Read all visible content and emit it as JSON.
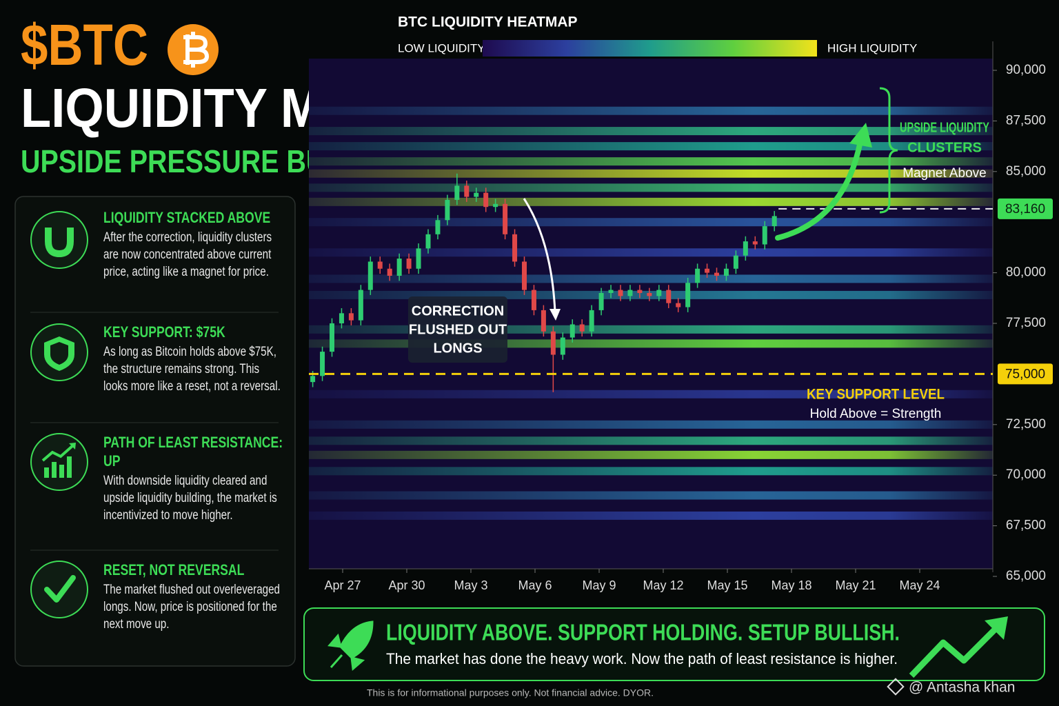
{
  "header": {
    "ticker": "$BTC",
    "title": "LIQUIDITY MAP:",
    "subtitle": "UPSIDE PRESSURE BUILDING"
  },
  "cards": [
    {
      "title": "LIQUIDITY STACKED ABOVE",
      "text": "After the correction, liquidity clusters are now concentrated above current price, acting like a magnet for price."
    },
    {
      "title": "KEY SUPPORT: $75K",
      "text": "As long as Bitcoin holds above $75K, the structure remains strong. This looks more like a reset, not a reversal."
    },
    {
      "title": "PATH OF LEAST RESISTANCE: UP",
      "text": "With downside liquidity cleared and upside liquidity building, the market is incentivized to move higher."
    },
    {
      "title": "RESET, NOT REVERSAL",
      "text": "The market flushed out overleveraged longs. Now, price is positioned for the next move up."
    }
  ],
  "chart_data": {
    "type": "candlestick",
    "title": "BTC LIQUIDITY HEATMAP",
    "colorbar_low": "LOW LIQUIDITY",
    "colorbar_high": "HIGH LIQUIDITY",
    "colorscale": [
      "#1e0b4f",
      "#2c3f9e",
      "#1f9c8c",
      "#5fcf3f",
      "#f2e21b"
    ],
    "up_color": "#2ecc71",
    "down_color": "#e04848",
    "xlim": [
      -2,
      30
    ],
    "xticks": [
      {
        "value": 0,
        "label": "Apr 27"
      },
      {
        "value": 3,
        "label": "Apr 30"
      },
      {
        "value": 6,
        "label": "May 3"
      },
      {
        "value": 9,
        "label": "May 6"
      },
      {
        "value": 12,
        "label": "May 9"
      },
      {
        "value": 15,
        "label": "May 12"
      },
      {
        "value": 18,
        "label": "May 15"
      },
      {
        "value": 21,
        "label": "May 18"
      },
      {
        "value": 24,
        "label": "May 21"
      },
      {
        "value": 27,
        "label": "May 24"
      }
    ],
    "ylim": [
      65000,
      90000
    ],
    "yticks": [
      {
        "value": 65000,
        "label": "65,000"
      },
      {
        "value": 67500,
        "label": "67,500"
      },
      {
        "value": 70000,
        "label": "70,000"
      },
      {
        "value": 72500,
        "label": "72,500"
      },
      {
        "value": 77500,
        "label": "77,500"
      },
      {
        "value": 80000,
        "label": "80,000"
      },
      {
        "value": 85000,
        "label": "85,000"
      },
      {
        "value": 87500,
        "label": "87,500"
      },
      {
        "value": 90000,
        "label": "90,000"
      }
    ],
    "x": [
      -1.4,
      -0.95,
      -0.5,
      -0.05,
      0.4,
      0.85,
      1.3,
      1.75,
      2.2,
      2.65,
      3.1,
      3.55,
      4.0,
      4.45,
      4.9,
      5.35,
      5.8,
      6.25,
      6.7,
      7.15,
      7.6,
      8.05,
      8.5,
      8.95,
      9.4,
      9.85,
      10.3,
      10.75,
      11.2,
      11.65,
      12.1,
      12.55,
      13.0,
      13.45,
      13.9,
      14.35,
      14.8,
      15.25,
      15.7,
      16.15,
      16.6,
      17.05,
      17.5,
      17.95,
      18.4,
      18.85,
      19.3,
      19.75,
      20.2
    ],
    "open": [
      74600,
      74900,
      76100,
      77500,
      78000,
      77650,
      79150,
      80550,
      80200,
      79850,
      80700,
      80200,
      81200,
      81900,
      82600,
      83600,
      84300,
      83750,
      83950,
      83250,
      83400,
      81900,
      80550,
      79150,
      78150,
      77100,
      75950,
      76800,
      77450,
      77100,
      78150,
      79000,
      79150,
      78850,
      79150,
      79000,
      78850,
      79150,
      78500,
      78300,
      79500,
      80200,
      80000,
      79850,
      80200,
      80850,
      81550,
      81400,
      82300
    ],
    "high": [
      75150,
      76350,
      77750,
      78250,
      78250,
      79400,
      80800,
      80800,
      80450,
      80950,
      80950,
      81450,
      82150,
      82850,
      83850,
      84900,
      84550,
      84200,
      84200,
      83650,
      83650,
      82150,
      80800,
      79400,
      78400,
      77350,
      77050,
      77700,
      77700,
      78400,
      79250,
      79400,
      79400,
      79400,
      79400,
      79250,
      79400,
      79400,
      78750,
      79750,
      80450,
      80450,
      80250,
      80450,
      81100,
      81800,
      81800,
      82550,
      83050
    ],
    "low": [
      74350,
      74650,
      75850,
      77250,
      77400,
      77400,
      78900,
      79950,
      79600,
      79600,
      79950,
      79950,
      80950,
      81650,
      82350,
      83350,
      83500,
      83500,
      83000,
      83000,
      81650,
      80300,
      78900,
      77900,
      76850,
      74100,
      75700,
      76550,
      76850,
      76850,
      77900,
      78750,
      78600,
      78600,
      78750,
      78600,
      78600,
      78250,
      78050,
      78050,
      79250,
      79750,
      79600,
      79600,
      79950,
      80600,
      81150,
      81150,
      82050
    ],
    "close": [
      74900,
      76100,
      77500,
      78000,
      77650,
      79150,
      80550,
      80200,
      79850,
      80700,
      80200,
      81200,
      81900,
      82600,
      83600,
      84300,
      83750,
      83950,
      83250,
      83400,
      81900,
      80550,
      79150,
      78150,
      77100,
      75950,
      76800,
      77450,
      77100,
      78150,
      79000,
      79150,
      78850,
      79150,
      79000,
      78850,
      79150,
      78500,
      78300,
      79500,
      80200,
      80000,
      79850,
      80200,
      80850,
      81550,
      81400,
      82300,
      82800
    ],
    "liquidity_bands": [
      {
        "price": 88000,
        "intensity": 0.35
      },
      {
        "price": 87000,
        "intensity": 0.55
      },
      {
        "price": 86250,
        "intensity": 0.5
      },
      {
        "price": 85500,
        "intensity": 0.7
      },
      {
        "price": 84900,
        "intensity": 0.92
      },
      {
        "price": 84200,
        "intensity": 0.6
      },
      {
        "price": 83500,
        "intensity": 0.85
      },
      {
        "price": 82500,
        "intensity": 0.3
      },
      {
        "price": 81000,
        "intensity": 0.25
      },
      {
        "price": 79700,
        "intensity": 0.35
      },
      {
        "price": 78900,
        "intensity": 0.4
      },
      {
        "price": 77200,
        "intensity": 0.55
      },
      {
        "price": 76500,
        "intensity": 0.75
      },
      {
        "price": 74000,
        "intensity": 0.2
      },
      {
        "price": 72500,
        "intensity": 0.35
      },
      {
        "price": 71700,
        "intensity": 0.55
      },
      {
        "price": 71000,
        "intensity": 0.82
      },
      {
        "price": 70200,
        "intensity": 0.5
      },
      {
        "price": 69000,
        "intensity": 0.35
      },
      {
        "price": 68000,
        "intensity": 0.25
      }
    ],
    "support": {
      "value": 75000,
      "label": "75,000",
      "title": "KEY SUPPORT LEVEL",
      "note": "Hold Above = Strength"
    },
    "current_price": {
      "value": 83160,
      "label": "83,160"
    },
    "annotations": {
      "correction": [
        "CORRECTION",
        "FLUSHED OUT",
        "LONGS"
      ],
      "clusters": [
        "UPSIDE LIQUIDITY",
        "CLUSTERS"
      ],
      "magnet": "Magnet Above"
    }
  },
  "banner": {
    "title": "LIQUIDITY ABOVE. SUPPORT HOLDING. SETUP BULLISH.",
    "text": "The market has done the heavy work. Now the path of least resistance is higher."
  },
  "footer": {
    "disclaimer": "This is for informational purposes only. Not financial advice. DYOR.",
    "watermark": "@ Antasha khan"
  }
}
